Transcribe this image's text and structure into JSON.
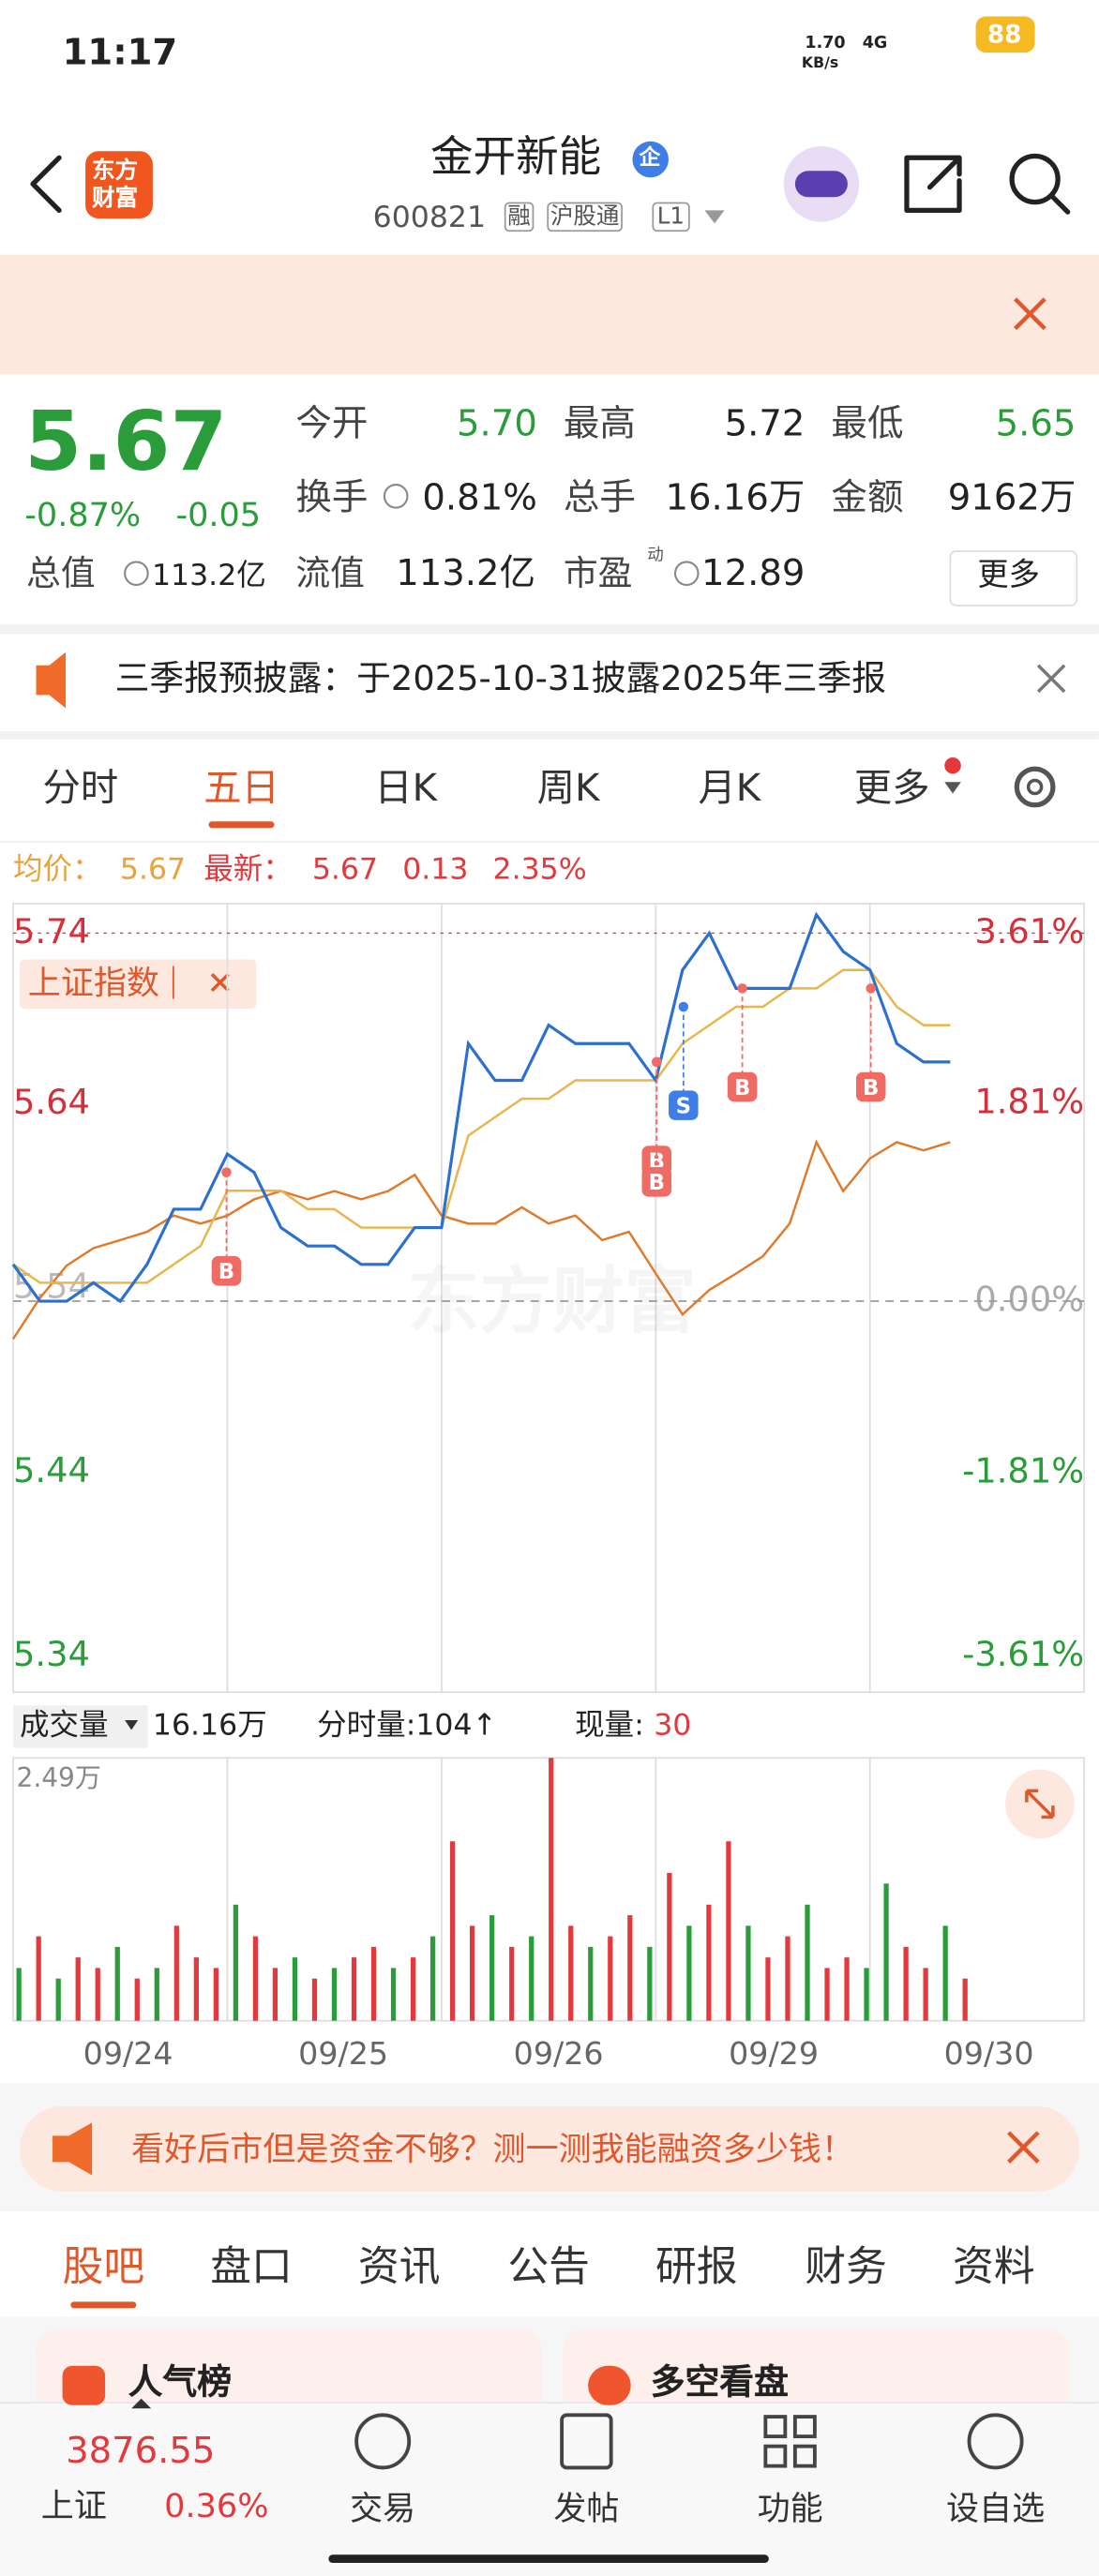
{
  "status": {
    "time": "11:17",
    "speed": "1.70",
    "speed_unit": "KB/s",
    "network": "4G",
    "battery": "88"
  },
  "header": {
    "logo": [
      "东方",
      "财富"
    ],
    "title": "金开新能",
    "badge": "企",
    "code": "600821",
    "tags": [
      "融",
      "沪股通",
      "L1"
    ]
  },
  "quote": {
    "price": "5.67",
    "change_pct": "-0.87%",
    "change": "-0.05",
    "pe_note": "动",
    "more": "更多",
    "fields": [
      {
        "label": "今开",
        "value": "5.70",
        "color": "#2a9d3a"
      },
      {
        "label": "最高",
        "value": "5.72",
        "color": "#222222"
      },
      {
        "label": "最低",
        "value": "5.65",
        "color": "#2a9d3a"
      },
      {
        "label": "换手",
        "value": "0.81%",
        "color": "#222222"
      },
      {
        "label": "总手",
        "value": "16.16万",
        "color": "#222222"
      },
      {
        "label": "金额",
        "value": "9162万",
        "color": "#222222"
      },
      {
        "label": "总值",
        "value": "113.2亿",
        "color": "#222222"
      },
      {
        "label": "流值",
        "value": "113.2亿",
        "color": "#222222"
      },
      {
        "label": "市盈",
        "value": "12.89",
        "color": "#222222"
      }
    ]
  },
  "notice": "三季报预披露：于2025-10-31披露2025年三季报",
  "tabs": {
    "items": [
      "分时",
      "五日",
      "日K",
      "周K",
      "月K",
      "更多"
    ],
    "active": 1
  },
  "chart_info": {
    "avg_label": "均价：",
    "avg": "5.67",
    "last_label": "最新：",
    "last": "5.67",
    "change": "0.13",
    "change_pct": "2.35%"
  },
  "chart": {
    "type": "line",
    "watermark": "东方财富",
    "legend": "上证指数",
    "x": [
      0,
      30,
      60,
      90,
      120,
      150,
      180,
      210,
      240,
      270,
      300,
      330,
      360,
      390,
      420,
      450,
      480,
      510,
      540,
      570,
      600,
      630,
      660,
      690,
      720,
      750,
      780,
      810,
      840,
      870,
      900,
      930,
      960,
      990,
      1020,
      1050
    ],
    "xlim": [
      0,
      1200
    ],
    "ylim": [
      5.34,
      5.74
    ],
    "yticks": [
      5.74,
      5.64,
      5.54,
      5.44,
      5.34
    ],
    "y2lim": [
      -3.61,
      3.61
    ],
    "y2ticks": [
      {
        "value": 3.61,
        "label": "3.61%"
      },
      {
        "value": 1.81,
        "label": "1.81%"
      },
      {
        "value": 0,
        "label": "0.00%"
      },
      {
        "value": -1.81,
        "label": "-1.81%"
      },
      {
        "value": -3.61,
        "label": "-3.61%"
      }
    ],
    "series": [
      {
        "color": "#2b6fd1",
        "values": [
          5.56,
          5.54,
          5.54,
          5.55,
          5.54,
          5.56,
          5.59,
          5.59,
          5.62,
          5.61,
          5.58,
          5.57,
          5.57,
          5.56,
          5.56,
          5.58,
          5.58,
          5.68,
          5.66,
          5.66,
          5.69,
          5.68,
          5.68,
          5.68,
          5.66,
          5.72,
          5.74,
          5.71,
          5.71,
          5.71,
          5.75,
          5.73,
          5.72,
          5.68,
          5.67,
          5.67
        ]
      },
      {
        "color": "#e8b64a",
        "values": [
          5.56,
          5.55,
          5.55,
          5.55,
          5.55,
          5.55,
          5.56,
          5.57,
          5.6,
          5.6,
          5.6,
          5.59,
          5.59,
          5.58,
          5.58,
          5.58,
          5.58,
          5.63,
          5.64,
          5.65,
          5.65,
          5.66,
          5.66,
          5.66,
          5.66,
          5.68,
          5.69,
          5.7,
          5.7,
          5.71,
          5.71,
          5.72,
          5.72,
          5.7,
          5.69,
          5.69
        ]
      },
      {
        "name": "上证指数",
        "color": "#e07a2a",
        "axis": "y2",
        "values": [
          -0.37,
          0.03,
          0.35,
          0.52,
          0.6,
          0.68,
          0.84,
          0.76,
          0.84,
          1.0,
          1.08,
          1.0,
          1.08,
          1.0,
          1.08,
          1.24,
          0.84,
          0.76,
          0.76,
          0.92,
          0.76,
          0.84,
          0.6,
          0.68,
          0.27,
          -0.13,
          0.11,
          0.27,
          0.44,
          0.76,
          1.56,
          1.08,
          1.4,
          1.56,
          1.48,
          1.56
        ]
      }
    ],
    "markers": [
      {
        "label": "B",
        "x": 239,
        "y": 5.61
      },
      {
        "label": "B",
        "x": 721,
        "y": 5.67
      },
      {
        "label": "B",
        "x": 721,
        "y": 5.67
      },
      {
        "label": "S",
        "x": 751,
        "y": 5.7
      },
      {
        "label": "B",
        "x": 817,
        "y": 5.71
      },
      {
        "label": "B",
        "x": 961,
        "y": 5.71
      }
    ]
  },
  "volume": {
    "label": "成交量",
    "total": "16.16万",
    "period": "分时量:104↑",
    "now_label": "现量:",
    "now": "30",
    "ylim": [
      0,
      2.49
    ],
    "yticks": [
      {
        "value": 2.49,
        "label": "2.49万"
      }
    ],
    "values": [
      0.5,
      0.8,
      0.4,
      0.6,
      0.5,
      0.7,
      0.4,
      0.5,
      0.9,
      0.6,
      0.5,
      1.1,
      0.8,
      0.5,
      0.6,
      0.4,
      0.5,
      0.6,
      0.7,
      0.5,
      0.6,
      0.8,
      1.7,
      0.9,
      1.0,
      0.7,
      0.8,
      2.49,
      0.9,
      0.7,
      0.8,
      1.0,
      0.7,
      1.4,
      0.9,
      1.1,
      1.7,
      0.9,
      0.6,
      0.8,
      1.1,
      0.5,
      0.6,
      0.5,
      1.3,
      0.7,
      0.5,
      0.9,
      0.4
    ],
    "colors": [
      "#2a9d3a",
      "#e4393c",
      "#2a9d3a",
      "#e4393c",
      "#e4393c",
      "#2a9d3a",
      "#e4393c",
      "#2a9d3a",
      "#e4393c",
      "#e4393c",
      "#e4393c",
      "#2a9d3a",
      "#e4393c",
      "#e4393c",
      "#2a9d3a",
      "#e4393c",
      "#2a9d3a",
      "#e4393c",
      "#e4393c",
      "#2a9d3a",
      "#e4393c",
      "#2a9d3a",
      "#e4393c",
      "#e4393c",
      "#2a9d3a",
      "#e4393c",
      "#2a9d3a",
      "#e4393c",
      "#e4393c",
      "#2a9d3a",
      "#e4393c",
      "#e4393c",
      "#2a9d3a",
      "#e4393c",
      "#2a9d3a",
      "#e4393c",
      "#e4393c",
      "#2a9d3a",
      "#e4393c",
      "#e4393c",
      "#2a9d3a",
      "#e4393c",
      "#e4393c",
      "#2a9d3a",
      "#2a9d3a",
      "#e4393c",
      "#e4393c",
      "#2a9d3a",
      "#e4393c"
    ],
    "days": [
      "09/24",
      "09/25",
      "09/26",
      "09/29",
      "09/30"
    ]
  },
  "ad": "看好后市但是资金不够？测一测我能融资多少钱！",
  "sections": {
    "items": [
      "股吧",
      "盘口",
      "资讯",
      "公告",
      "研报",
      "财务",
      "资料"
    ],
    "active": 0
  },
  "cards": [
    "人气榜",
    "多空看盘"
  ],
  "footer": {
    "index_value": "3876.55",
    "index_name": "上证",
    "index_change": "0.36%",
    "nav": [
      "交易",
      "发帖",
      "功能",
      "设自选"
    ]
  }
}
